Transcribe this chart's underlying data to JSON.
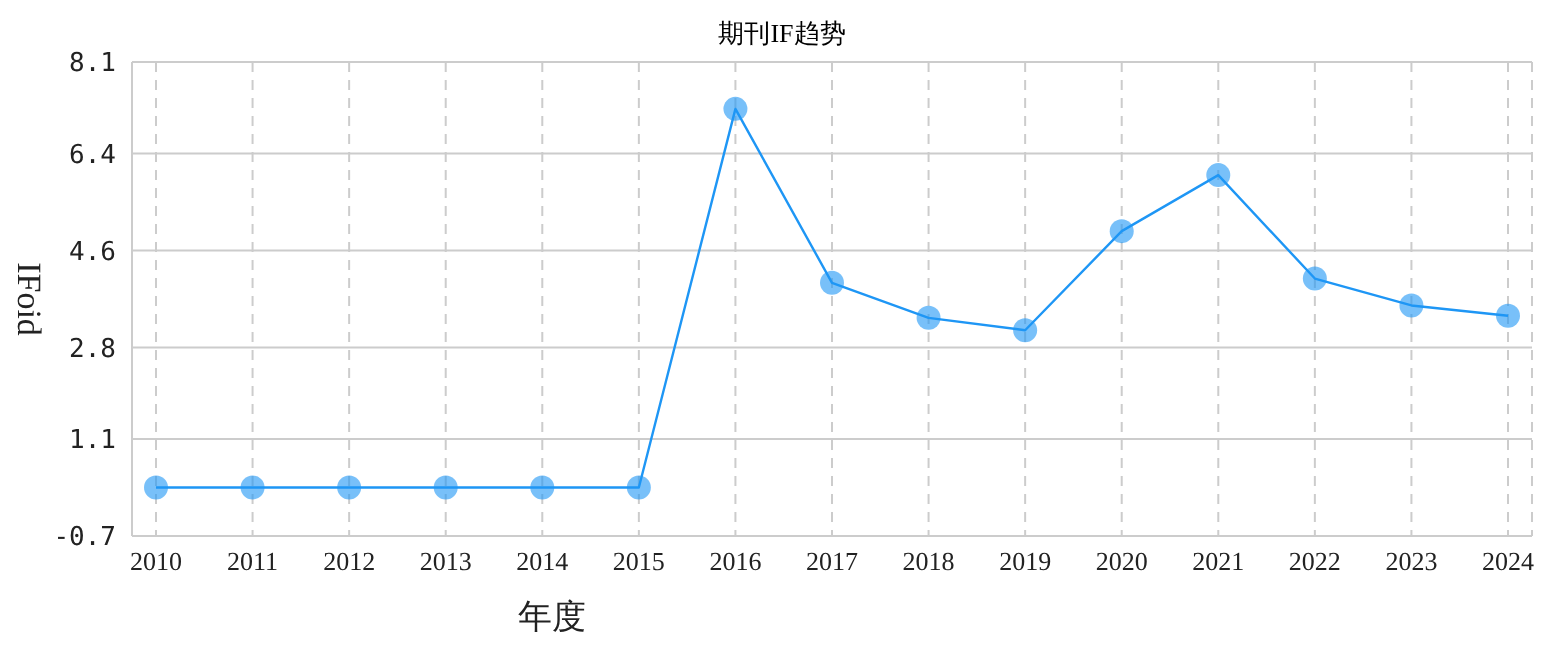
{
  "chart_data": {
    "type": "line",
    "title": "期刊IF趋势",
    "xlabel": "年度",
    "ylabel": "IFoid",
    "categories": [
      "2010",
      "2011",
      "2012",
      "2013",
      "2014",
      "2015",
      "2016",
      "2017",
      "2018",
      "2019",
      "2020",
      "2021",
      "2022",
      "2023",
      "2024"
    ],
    "series": [
      {
        "color": "#1e96f5",
        "values": [
          0.2,
          0.2,
          0.2,
          0.2,
          0.2,
          0.2,
          7.23,
          4.0,
          3.35,
          3.12,
          4.96,
          6.0,
          4.08,
          3.58,
          3.39
        ]
      }
    ],
    "ylim": [
      -0.7,
      8.1
    ],
    "yticks": [
      -0.7,
      1.1,
      2.8,
      4.6,
      6.4,
      8.1
    ],
    "grid": true,
    "marker": "circle",
    "line_style": "solid"
  }
}
